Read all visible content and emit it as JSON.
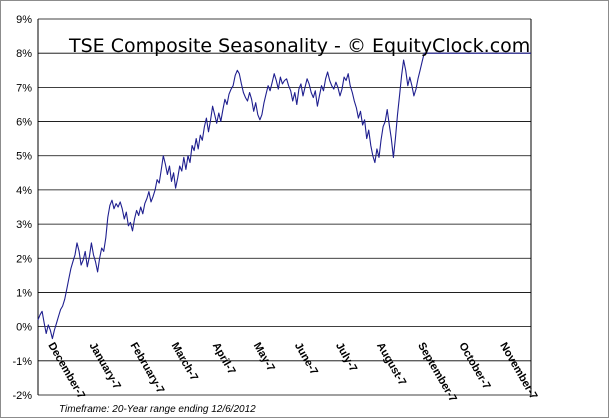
{
  "chart_data": {
    "type": "line",
    "title": "TSE Composite Seasonality - © EquityClock.com",
    "footnote": "Timeframe: 20-Year range ending 12/6/2012",
    "xlabel": "",
    "ylabel": "",
    "ylim": [
      -2,
      9
    ],
    "y_ticks": [
      "-2%",
      "-1%",
      "0%",
      "1%",
      "2%",
      "3%",
      "4%",
      "5%",
      "6%",
      "7%",
      "8%",
      "9%"
    ],
    "x_ticks": [
      "December-7",
      "January-7",
      "February-7",
      "March-7",
      "April-7",
      "May-7",
      "June-7",
      "July-7",
      "August-7",
      "September-7",
      "October-7",
      "November-7"
    ],
    "grid": true,
    "colors": {
      "line": "#1f1f8f",
      "grid": "#000000",
      "border": "#8c8c8c"
    },
    "series": [
      {
        "name": "",
        "x": [
          0,
          0.05,
          0.1,
          0.15,
          0.2,
          0.25,
          0.3,
          0.35,
          0.4,
          0.45,
          0.5,
          0.55,
          0.6,
          0.65,
          0.7,
          0.75,
          0.8,
          0.85,
          0.9,
          0.95,
          1,
          1.05,
          1.1,
          1.15,
          1.2,
          1.25,
          1.3,
          1.35,
          1.4,
          1.45,
          1.5,
          1.55,
          1.6,
          1.65,
          1.7,
          1.75,
          1.8,
          1.85,
          1.9,
          1.95,
          2,
          2.05,
          2.1,
          2.15,
          2.2,
          2.25,
          2.3,
          2.35,
          2.4,
          2.45,
          2.5,
          2.55,
          2.6,
          2.65,
          2.7,
          2.75,
          2.8,
          2.85,
          2.9,
          2.95,
          3,
          3.05,
          3.1,
          3.15,
          3.2,
          3.25,
          3.3,
          3.35,
          3.4,
          3.45,
          3.5,
          3.55,
          3.6,
          3.65,
          3.7,
          3.75,
          3.8,
          3.85,
          3.9,
          3.95,
          4,
          4.05,
          4.1,
          4.15,
          4.2,
          4.25,
          4.3,
          4.35,
          4.4,
          4.45,
          4.5,
          4.55,
          4.6,
          4.65,
          4.7,
          4.75,
          4.8,
          4.85,
          4.9,
          4.95,
          5,
          5.05,
          5.1,
          5.15,
          5.2,
          5.25,
          5.3,
          5.35,
          5.4,
          5.45,
          5.5,
          5.55,
          5.6,
          5.65,
          5.7,
          5.75,
          5.8,
          5.85,
          5.9,
          5.95,
          6,
          6.05,
          6.1,
          6.15,
          6.2,
          6.25,
          6.3,
          6.35,
          6.4,
          6.45,
          6.5,
          6.55,
          6.6,
          6.65,
          6.7,
          6.75,
          6.8,
          6.85,
          6.9,
          6.95,
          7,
          7.05,
          7.1,
          7.15,
          7.2,
          7.25,
          7.3,
          7.35,
          7.4,
          7.45,
          7.5,
          7.55,
          7.6,
          7.65,
          7.7,
          7.75,
          7.8,
          7.85,
          7.9,
          7.95,
          8,
          8.05,
          8.1,
          8.15,
          8.2,
          8.25,
          8.3,
          8.35,
          8.4,
          8.45,
          8.5,
          8.55,
          8.6,
          8.65,
          8.7,
          8.75,
          8.8,
          8.85,
          8.9,
          8.95,
          9,
          9.05,
          9.1,
          9.15,
          9.2,
          9.25,
          9.3,
          9.35,
          9.4,
          9.45,
          9.5,
          9.55,
          9.6,
          9.65,
          9.7,
          9.75,
          9.8,
          9.85,
          9.9,
          9.95,
          10,
          10.05,
          10.1,
          10.15,
          10.2,
          10.25,
          10.3,
          10.35,
          10.4,
          10.45,
          10.5,
          10.55,
          10.6,
          10.65,
          10.7,
          10.75,
          10.8,
          10.85,
          10.9,
          10.95,
          11,
          11.05,
          11.1,
          11.15,
          11.2,
          11.25,
          11.3,
          11.35,
          11.4,
          11.45,
          11.5,
          11.55,
          11.6,
          11.65,
          11.7,
          11.75,
          11.8,
          11.85,
          11.9,
          11.95,
          12
        ],
        "values": [
          0.2,
          0.35,
          0.45,
          0.1,
          -0.2,
          0.05,
          -0.1,
          -0.35,
          -0.1,
          0.1,
          0.3,
          0.5,
          0.6,
          0.8,
          1.1,
          1.4,
          1.7,
          1.9,
          2.1,
          2.45,
          2.2,
          1.8,
          1.95,
          2.2,
          1.75,
          2.05,
          2.45,
          2.1,
          1.9,
          1.6,
          2.0,
          2.3,
          2.2,
          2.6,
          3.2,
          3.55,
          3.7,
          3.45,
          3.6,
          3.5,
          3.65,
          3.45,
          3.15,
          3.35,
          2.95,
          3.05,
          2.8,
          3.15,
          3.4,
          3.25,
          3.5,
          3.3,
          3.6,
          3.75,
          3.95,
          3.65,
          3.8,
          4.0,
          4.3,
          4.2,
          4.6,
          5.0,
          4.75,
          4.45,
          4.7,
          4.25,
          4.5,
          4.05,
          4.35,
          4.7,
          4.55,
          4.95,
          4.6,
          5.0,
          4.8,
          5.3,
          5.15,
          5.5,
          5.2,
          5.6,
          5.45,
          5.85,
          6.1,
          5.7,
          6.05,
          6.45,
          6.2,
          5.95,
          6.25,
          6.0,
          6.35,
          6.65,
          6.5,
          6.8,
          6.95,
          7.05,
          7.35,
          7.5,
          7.4,
          7.1,
          6.85,
          6.7,
          6.6,
          6.85,
          6.65,
          6.3,
          6.55,
          6.2,
          6.05,
          6.2,
          6.55,
          6.8,
          7.05,
          6.9,
          7.15,
          7.4,
          7.2,
          6.95,
          7.3,
          7.1,
          7.2,
          7.25,
          7.05,
          6.9,
          6.6,
          6.85,
          6.5,
          6.95,
          7.1,
          6.75,
          7.0,
          7.25,
          7.1,
          6.85,
          6.7,
          6.9,
          6.45,
          6.75,
          7.05,
          6.9,
          7.25,
          7.45,
          7.2,
          7.05,
          6.95,
          7.15,
          7.0,
          6.75,
          6.95,
          7.3,
          7.2,
          7.4,
          7.05,
          6.85,
          6.6,
          6.4,
          6.1,
          6.3,
          5.9,
          6.05,
          5.5,
          5.75,
          5.3,
          5.0,
          4.8,
          5.2,
          4.95,
          5.45,
          5.85,
          6.0,
          6.35,
          5.9,
          5.5,
          4.95,
          5.5,
          6.2,
          6.75,
          7.35,
          7.8,
          7.5,
          7.05,
          7.3,
          7.05,
          6.75,
          6.95,
          7.25,
          7.5,
          7.75,
          8.0,
          8.0,
          8.0,
          8.0,
          8.0,
          8.0,
          8.0,
          8.0,
          8.0,
          8.0,
          8.0,
          8.0,
          8.0,
          8.0,
          8.0,
          8.0,
          8.0,
          8.0,
          8.0,
          8.0,
          8.0,
          8.0,
          8.0,
          8.0,
          8.0,
          8.0,
          8.0,
          8.0,
          8.0,
          8.0,
          8.0,
          8.0,
          8.0,
          8.0,
          8.0,
          8.0,
          8.0,
          8.0,
          8.0,
          8.0,
          8.0,
          8.0,
          8.0,
          8.0,
          8.0,
          8.0,
          8.0,
          8.0,
          8.0,
          8.0,
          8.0,
          8.0,
          8.0
        ]
      }
    ]
  }
}
